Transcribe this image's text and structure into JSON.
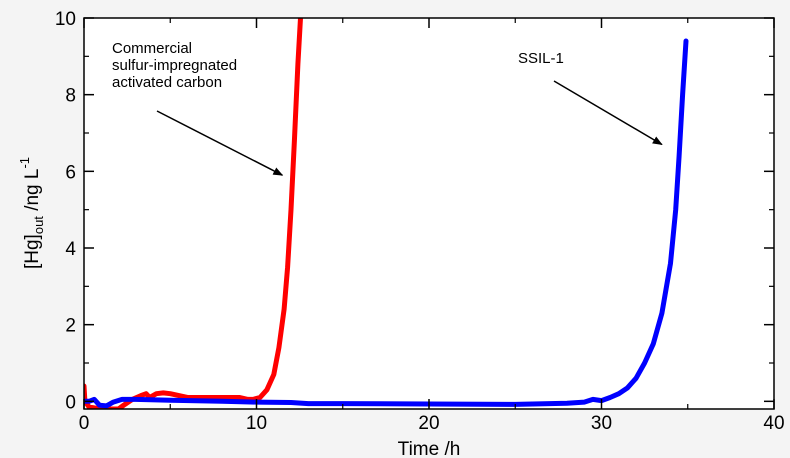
{
  "chart_data": {
    "type": "line",
    "xlabel": "Time /h",
    "ylabel": {
      "base": "[Hg]",
      "sub": "out",
      "mid": " /ng L",
      "sup": "-1"
    },
    "xlim": [
      0,
      40
    ],
    "ylim": [
      -0.2,
      10
    ],
    "xticks": [
      0,
      10,
      20,
      30,
      40
    ],
    "yticks": [
      0,
      2,
      4,
      6,
      8,
      10
    ],
    "grid": false,
    "series": [
      {
        "label": "Commercial sulfur-impregnated activated carbon",
        "color": "#ff0000",
        "points": [
          [
            0,
            0.4
          ],
          [
            0.05,
            0.0
          ],
          [
            0.3,
            -0.15
          ],
          [
            1.0,
            -0.2
          ],
          [
            2.0,
            -0.2
          ],
          [
            2.3,
            -0.1
          ],
          [
            2.8,
            0.05
          ],
          [
            3.3,
            0.15
          ],
          [
            3.6,
            0.2
          ],
          [
            3.8,
            0.1
          ],
          [
            4.2,
            0.2
          ],
          [
            4.6,
            0.22
          ],
          [
            5.0,
            0.2
          ],
          [
            5.5,
            0.15
          ],
          [
            6.0,
            0.1
          ],
          [
            7.0,
            0.1
          ],
          [
            8.0,
            0.1
          ],
          [
            9.0,
            0.1
          ],
          [
            9.5,
            0.05
          ],
          [
            9.8,
            0.05
          ],
          [
            10.2,
            0.1
          ],
          [
            10.6,
            0.3
          ],
          [
            11.0,
            0.7
          ],
          [
            11.3,
            1.4
          ],
          [
            11.6,
            2.4
          ],
          [
            11.8,
            3.5
          ],
          [
            12.0,
            5.0
          ],
          [
            12.2,
            6.8
          ],
          [
            12.4,
            8.8
          ],
          [
            12.55,
            10.0
          ]
        ]
      },
      {
        "label": "SSIL-1",
        "color": "#0000ff",
        "points": [
          [
            0,
            0.0
          ],
          [
            0.3,
            0.0
          ],
          [
            0.6,
            0.05
          ],
          [
            0.9,
            -0.1
          ],
          [
            1.3,
            -0.12
          ],
          [
            1.7,
            -0.02
          ],
          [
            2.2,
            0.05
          ],
          [
            3.0,
            0.05
          ],
          [
            5.0,
            0.03
          ],
          [
            8.0,
            0.0
          ],
          [
            10.0,
            -0.02
          ],
          [
            12.0,
            -0.03
          ],
          [
            13.0,
            -0.06
          ],
          [
            15.0,
            -0.06
          ],
          [
            20.0,
            -0.07
          ],
          [
            25.0,
            -0.08
          ],
          [
            27.0,
            -0.06
          ],
          [
            28.0,
            -0.05
          ],
          [
            29.0,
            -0.02
          ],
          [
            29.5,
            0.05
          ],
          [
            30.0,
            0.02
          ],
          [
            30.5,
            0.1
          ],
          [
            31.0,
            0.2
          ],
          [
            31.5,
            0.35
          ],
          [
            32.0,
            0.6
          ],
          [
            32.5,
            1.0
          ],
          [
            33.0,
            1.5
          ],
          [
            33.5,
            2.3
          ],
          [
            34.0,
            3.6
          ],
          [
            34.3,
            5.0
          ],
          [
            34.5,
            6.4
          ],
          [
            34.7,
            8.0
          ],
          [
            34.9,
            9.4
          ]
        ]
      }
    ],
    "annotations": [
      {
        "lines": [
          "Commercial",
          "sulfur-impregnated",
          "activated carbon"
        ],
        "arrow_tip": [
          11.5,
          5.9
        ]
      },
      {
        "lines": [
          "SSIL-1"
        ],
        "arrow_tip": [
          33.5,
          6.7
        ]
      }
    ]
  }
}
